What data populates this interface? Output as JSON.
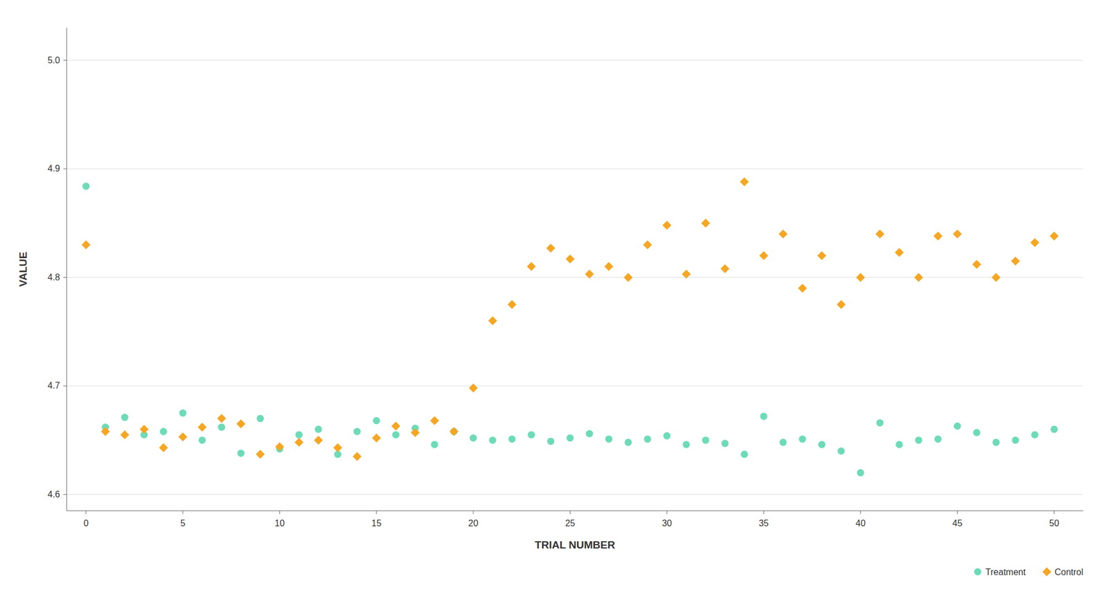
{
  "chart_data": {
    "type": "scatter",
    "xlabel": "TRIAL NUMBER",
    "ylabel": "VALUE",
    "xlim": [
      -1.0,
      51.5
    ],
    "ylim": [
      4.585,
      5.03
    ],
    "xticks": [
      0,
      5,
      10,
      15,
      20,
      25,
      30,
      35,
      40,
      45,
      50
    ],
    "yticks": [
      4.6,
      4.7,
      4.8,
      4.9,
      {
        "value": 5.0,
        "label": "5.0"
      }
    ],
    "grid": "y",
    "legend": "lower right",
    "x": [
      0,
      1,
      2,
      3,
      4,
      5,
      6,
      7,
      8,
      9,
      10,
      11,
      12,
      13,
      14,
      15,
      16,
      17,
      18,
      19,
      20,
      21,
      22,
      23,
      24,
      25,
      26,
      27,
      28,
      29,
      30,
      31,
      32,
      33,
      34,
      35,
      36,
      37,
      38,
      39,
      40,
      41,
      42,
      43,
      44,
      45,
      46,
      47,
      48,
      49,
      50
    ],
    "series": [
      {
        "name": "Treatment",
        "color": "#6ddbb8",
        "marker": "circle",
        "values": [
          4.884,
          4.662,
          4.671,
          4.655,
          4.658,
          4.675,
          4.65,
          4.662,
          4.638,
          4.67,
          4.642,
          4.655,
          4.66,
          4.637,
          4.658,
          4.668,
          4.655,
          4.661,
          4.646,
          4.658,
          4.652,
          4.65,
          4.651,
          4.655,
          4.649,
          4.652,
          4.656,
          4.651,
          4.648,
          4.651,
          4.654,
          4.646,
          4.65,
          4.647,
          4.637,
          4.672,
          4.648,
          4.651,
          4.646,
          4.64,
          4.62,
          4.666,
          4.646,
          4.65,
          4.651,
          4.663,
          4.657,
          4.648,
          4.65,
          4.655,
          4.66
        ]
      },
      {
        "name": "Control",
        "color": "#f5a623",
        "marker": "diamond",
        "values": [
          4.83,
          4.658,
          4.655,
          4.66,
          4.643,
          4.653,
          4.662,
          4.67,
          4.665,
          4.637,
          4.644,
          4.648,
          4.65,
          4.643,
          4.635,
          4.652,
          4.663,
          4.657,
          4.668,
          4.658,
          4.698,
          4.76,
          4.775,
          4.81,
          4.827,
          4.817,
          4.803,
          4.81,
          4.8,
          4.83,
          4.848,
          4.803,
          4.85,
          4.808,
          4.888,
          4.82,
          4.84,
          4.79,
          4.82,
          4.775,
          4.8,
          4.84,
          4.823,
          4.8,
          4.838,
          4.84,
          4.812,
          4.8,
          4.815,
          4.832,
          4.838
        ]
      }
    ]
  }
}
